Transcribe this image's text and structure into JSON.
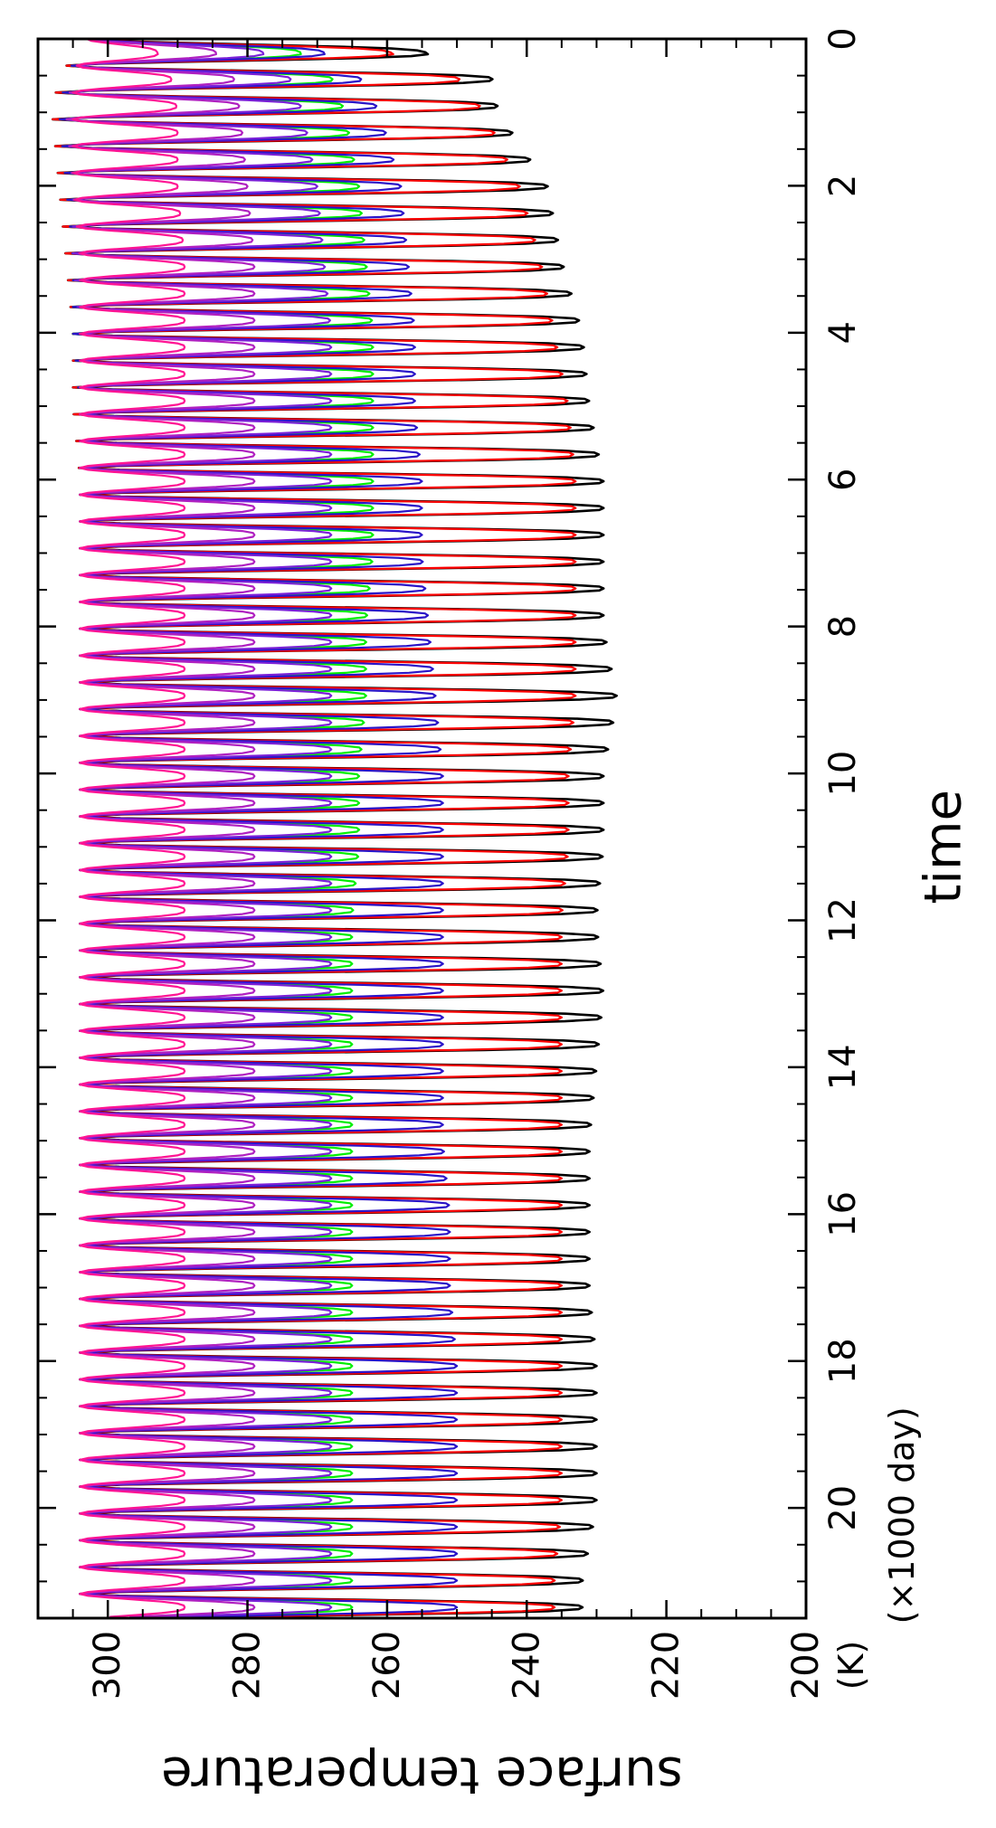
{
  "chart_data": {
    "type": "line",
    "orientation": "rotated 90 degrees clockwise",
    "title": "",
    "xlabel": "time",
    "xunit": "(×1000 day)",
    "ylabel": "surface temperature",
    "yunit": "(K)",
    "xlim": [
      0,
      21.5
    ],
    "ylim": [
      200,
      310
    ],
    "xticks": [
      0,
      2,
      4,
      6,
      8,
      10,
      12,
      14,
      16,
      18,
      20
    ],
    "xtick_labels": [
      "0",
      "2",
      "4",
      "6",
      "8",
      "10",
      "12",
      "14",
      "16",
      "18",
      "20"
    ],
    "yticks": [
      200,
      220,
      240,
      260,
      280,
      300
    ],
    "ytick_labels": [
      "200",
      "220",
      "240",
      "260",
      "280",
      "300"
    ],
    "grid": false,
    "legend": "none",
    "oscillation_period": 0.365,
    "series": [
      {
        "color": "#000000",
        "x": [
          0,
          0.5,
          1,
          2,
          3,
          4,
          5,
          6,
          7,
          8,
          9,
          10,
          11,
          12,
          13,
          14,
          15,
          16,
          17,
          18,
          19,
          20,
          21,
          21.5
        ],
        "max": [
          303,
          307,
          308,
          307,
          306,
          305,
          305,
          304,
          304,
          304,
          304,
          304,
          304,
          304,
          304,
          304,
          304,
          304,
          304,
          304,
          304,
          304,
          304,
          304
        ],
        "min": [
          260,
          245,
          244,
          237,
          235,
          232,
          231,
          229,
          229,
          229,
          227,
          229,
          229,
          230,
          229,
          230,
          231,
          231,
          231,
          230,
          230,
          230,
          232,
          232
        ]
      },
      {
        "color": "#ff0000",
        "x": [
          0,
          0.5,
          1,
          2,
          3,
          4,
          5,
          6,
          7,
          8,
          9,
          10,
          11,
          12,
          13,
          14,
          15,
          16,
          17,
          18,
          19,
          20,
          21,
          21.5
        ],
        "max": [
          303,
          307,
          308,
          307,
          306,
          305,
          305,
          304,
          304,
          304,
          304,
          304,
          304,
          304,
          304,
          304,
          304,
          304,
          304,
          304,
          304,
          304,
          304,
          304
        ],
        "min": [
          265,
          250,
          246,
          241,
          238,
          236,
          234,
          233,
          233,
          233,
          233,
          234,
          234,
          235,
          235,
          235,
          235,
          235,
          235,
          235,
          235,
          235,
          236,
          236
        ]
      },
      {
        "color": "#00ee00",
        "x": [
          0,
          0.5,
          1,
          2,
          3,
          4,
          5,
          6,
          7,
          8,
          9,
          10,
          11,
          12,
          13,
          14,
          15,
          16,
          17,
          18,
          19,
          20,
          21,
          21.5
        ],
        "max": [
          303,
          306,
          307,
          306,
          305,
          305,
          304,
          304,
          304,
          304,
          304,
          304,
          304,
          304,
          304,
          304,
          304,
          304,
          304,
          304,
          304,
          304,
          304,
          304
        ],
        "min": [
          275,
          268,
          266,
          264,
          263,
          262,
          262,
          262,
          262,
          263,
          263,
          264,
          264,
          265,
          265,
          265,
          265,
          265,
          265,
          265,
          265,
          265,
          265,
          265
        ]
      },
      {
        "color": "#2a14c8",
        "x": [
          0,
          0.5,
          1,
          2,
          3,
          4,
          5,
          6,
          7,
          8,
          9,
          10,
          11,
          12,
          13,
          14,
          15,
          16,
          17,
          18,
          19,
          20,
          21,
          21.5
        ],
        "max": [
          303,
          306,
          307,
          306,
          305,
          305,
          304,
          304,
          304,
          304,
          304,
          304,
          304,
          304,
          304,
          304,
          304,
          304,
          304,
          304,
          304,
          304,
          304,
          304
        ],
        "min": [
          272,
          264,
          261,
          258,
          257,
          256,
          256,
          255,
          255,
          254,
          253,
          252,
          252,
          252,
          252,
          252,
          252,
          251,
          251,
          250,
          250,
          250,
          250,
          250
        ]
      },
      {
        "color": "#7a20d8",
        "x": [
          0,
          0.5,
          1,
          2,
          3,
          4,
          5,
          6,
          7,
          8,
          9,
          10,
          11,
          12,
          13,
          14,
          15,
          16,
          17,
          18,
          19,
          20,
          21,
          21.5
        ],
        "max": [
          303,
          305,
          306,
          305,
          305,
          304,
          304,
          304,
          304,
          304,
          304,
          304,
          304,
          304,
          304,
          304,
          304,
          304,
          304,
          304,
          304,
          304,
          304,
          304
        ],
        "min": [
          280,
          274,
          272,
          270,
          269,
          268,
          268,
          268,
          268,
          268,
          268,
          268,
          268,
          268,
          268,
          268,
          268,
          268,
          268,
          268,
          268,
          268,
          268,
          268
        ]
      },
      {
        "color": "#b020c0",
        "x": [
          0,
          0.5,
          1,
          2,
          3,
          4,
          5,
          6,
          7,
          8,
          9,
          10,
          11,
          12,
          13,
          14,
          15,
          16,
          17,
          18,
          19,
          20,
          21,
          21.5
        ],
        "max": [
          303,
          305,
          306,
          305,
          304,
          304,
          304,
          304,
          304,
          304,
          304,
          304,
          304,
          304,
          304,
          304,
          304,
          304,
          304,
          304,
          304,
          304,
          304,
          304
        ],
        "min": [
          286,
          282,
          281,
          280,
          279,
          279,
          279,
          279,
          279,
          279,
          279,
          279,
          279,
          279,
          279,
          279,
          279,
          279,
          279,
          279,
          279,
          279,
          279,
          279
        ]
      },
      {
        "color": "#ff1493",
        "x": [
          0,
          0.5,
          1,
          2,
          3,
          4,
          5,
          6,
          7,
          8,
          9,
          10,
          11,
          12,
          13,
          14,
          15,
          16,
          17,
          18,
          19,
          20,
          21,
          21.5
        ],
        "max": [
          303,
          305,
          305,
          305,
          304,
          304,
          304,
          304,
          304,
          304,
          304,
          304,
          304,
          304,
          304,
          304,
          304,
          304,
          304,
          304,
          304,
          304,
          304,
          304
        ],
        "min": [
          294,
          291,
          290,
          290,
          289,
          289,
          289,
          289,
          289,
          289,
          289,
          289,
          289,
          289,
          289,
          289,
          289,
          289,
          289,
          289,
          289,
          289,
          289,
          289
        ]
      }
    ]
  }
}
